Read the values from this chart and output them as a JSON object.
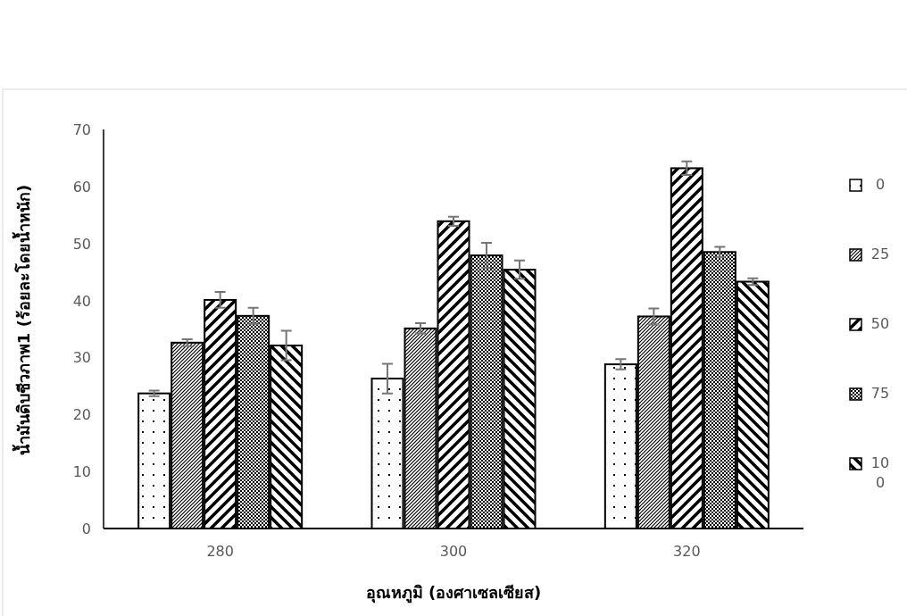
{
  "chart_data": {
    "type": "bar",
    "xlabel": "อุณหภูมิ (องศาเซลเซียส)",
    "ylabel": "น้ำมันดิบชีวภาพ1 (ร้อยละโดยน้ำหนัก)",
    "categories": [
      "280",
      "300",
      "320"
    ],
    "series": [
      {
        "name": "0",
        "color": "#000000",
        "values": [
          23.7,
          26.3,
          28.8
        ],
        "errors": [
          0.5,
          2.6,
          0.9
        ]
      },
      {
        "name": "25",
        "color": "#000000",
        "values": [
          32.6,
          35.1,
          37.2
        ],
        "errors": [
          0.6,
          0.9,
          1.4
        ]
      },
      {
        "name": "50",
        "color": "#000000",
        "values": [
          40.1,
          53.9,
          63.2
        ],
        "errors": [
          1.4,
          0.8,
          1.2
        ]
      },
      {
        "name": "75",
        "color": "#000000",
        "values": [
          37.3,
          47.9,
          48.5
        ],
        "errors": [
          1.4,
          2.2,
          0.9
        ]
      },
      {
        "name": "100",
        "color": "#000000",
        "values": [
          32.1,
          45.4,
          43.3
        ],
        "errors": [
          2.6,
          1.6,
          0.6
        ]
      }
    ],
    "ylim": [
      0,
      70
    ],
    "yticks": [
      0,
      10,
      20,
      30,
      40,
      50,
      60,
      70
    ],
    "grid": false,
    "legend": "right"
  }
}
